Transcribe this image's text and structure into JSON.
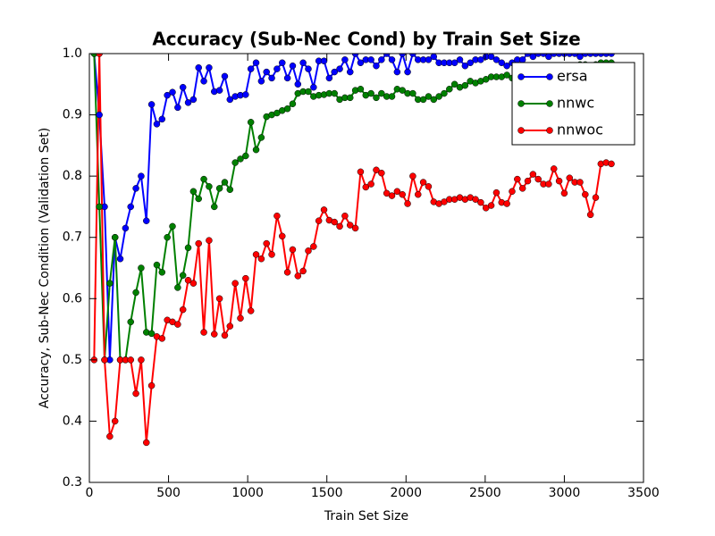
{
  "chart_data": {
    "type": "line",
    "title": "Accuracy (Sub-Nec Cond) by Train Set Size",
    "xlabel": "Train Set Size",
    "ylabel": "Accuracy, Sub-Nec Condition (Validation Set)",
    "xlim": [
      0,
      3500
    ],
    "ylim": [
      0.3,
      1
    ],
    "xticks": [
      0,
      500,
      1000,
      1500,
      2000,
      2500,
      3000,
      3500
    ],
    "yticks": [
      0.3,
      0.4,
      0.5,
      0.6,
      0.7,
      0.8,
      0.9,
      {
        "value": 1,
        "label": "1.0"
      }
    ],
    "legend": "upper right",
    "x": [
      30,
      63,
      96,
      129,
      162,
      195,
      228,
      261,
      294,
      327,
      360,
      393,
      426,
      459,
      492,
      525,
      558,
      591,
      624,
      657,
      690,
      723,
      756,
      789,
      822,
      855,
      888,
      921,
      954,
      987,
      1020,
      1053,
      1086,
      1119,
      1152,
      1185,
      1218,
      1251,
      1284,
      1317,
      1350,
      1383,
      1416,
      1449,
      1482,
      1515,
      1548,
      1581,
      1614,
      1647,
      1680,
      1713,
      1746,
      1779,
      1812,
      1845,
      1878,
      1911,
      1944,
      1977,
      2010,
      2043,
      2076,
      2109,
      2142,
      2175,
      2208,
      2241,
      2274,
      2307,
      2340,
      2373,
      2406,
      2439,
      2472,
      2505,
      2538,
      2571,
      2604,
      2637,
      2670,
      2703,
      2736,
      2769,
      2802,
      2835,
      2868,
      2901,
      2934,
      2967,
      3000,
      3033,
      3066,
      3099,
      3132,
      3165,
      3198,
      3231,
      3264,
      3297
    ],
    "series": [
      {
        "name": "ersa",
        "color": "#0000ff",
        "values": [
          1.0,
          0.9,
          0.75,
          0.5,
          0.7,
          0.665,
          0.715,
          0.75,
          0.78,
          0.8,
          0.727,
          0.917,
          0.885,
          0.893,
          0.932,
          0.937,
          0.912,
          0.945,
          0.92,
          0.925,
          0.977,
          0.955,
          0.977,
          0.938,
          0.94,
          0.963,
          0.925,
          0.93,
          0.932,
          0.933,
          0.975,
          0.985,
          0.955,
          0.97,
          0.96,
          0.975,
          0.985,
          0.96,
          0.98,
          0.95,
          0.985,
          0.975,
          0.945,
          0.988,
          0.988,
          0.96,
          0.97,
          0.975,
          0.99,
          0.97,
          1.0,
          0.985,
          0.99,
          0.99,
          0.98,
          0.99,
          1.0,
          0.99,
          0.97,
          1.0,
          0.97,
          1.0,
          0.99,
          0.99,
          0.99,
          0.995,
          0.985,
          0.985,
          0.985,
          0.985,
          0.99,
          0.98,
          0.985,
          0.99,
          0.99,
          0.995,
          0.995,
          0.99,
          0.985,
          0.98,
          0.985,
          0.99,
          0.99,
          1.0,
          0.995,
          1.0,
          1.0,
          0.995,
          1.0,
          1.0,
          1.0,
          1.0,
          1.0,
          0.995,
          1.0,
          1.0,
          1.0,
          1.0,
          1.0,
          1.0
        ]
      },
      {
        "name": "nnwc",
        "color": "#008000",
        "values": [
          1.0,
          0.75,
          0.5,
          0.625,
          0.7,
          0.5,
          0.5,
          0.562,
          0.61,
          0.65,
          0.545,
          0.543,
          0.655,
          0.643,
          0.7,
          0.718,
          0.618,
          0.638,
          0.683,
          0.775,
          0.763,
          0.795,
          0.783,
          0.75,
          0.78,
          0.79,
          0.778,
          0.822,
          0.828,
          0.833,
          0.888,
          0.843,
          0.863,
          0.897,
          0.9,
          0.903,
          0.907,
          0.91,
          0.918,
          0.935,
          0.938,
          0.938,
          0.93,
          0.932,
          0.933,
          0.935,
          0.935,
          0.925,
          0.928,
          0.928,
          0.94,
          0.942,
          0.932,
          0.935,
          0.928,
          0.935,
          0.93,
          0.93,
          0.942,
          0.94,
          0.935,
          0.935,
          0.925,
          0.925,
          0.93,
          0.925,
          0.93,
          0.935,
          0.942,
          0.95,
          0.945,
          0.948,
          0.955,
          0.952,
          0.955,
          0.958,
          0.962,
          0.962,
          0.962,
          0.965,
          0.96,
          0.958,
          0.962,
          0.968,
          0.97,
          0.97,
          0.972,
          0.975,
          0.978,
          0.978,
          0.98,
          0.978,
          0.98,
          0.982,
          0.982,
          0.98,
          0.982,
          0.985,
          0.985,
          0.985
        ]
      },
      {
        "name": "nnwoc",
        "color": "#ff0000",
        "values": [
          0.5,
          1.0,
          0.5,
          0.375,
          0.4,
          0.5,
          0.5,
          0.5,
          0.445,
          0.5,
          0.365,
          0.458,
          0.538,
          0.535,
          0.565,
          0.562,
          0.558,
          0.582,
          0.63,
          0.625,
          0.69,
          0.545,
          0.695,
          0.542,
          0.6,
          0.54,
          0.555,
          0.625,
          0.568,
          0.633,
          0.58,
          0.672,
          0.665,
          0.69,
          0.672,
          0.735,
          0.702,
          0.643,
          0.68,
          0.637,
          0.645,
          0.678,
          0.685,
          0.727,
          0.745,
          0.728,
          0.725,
          0.718,
          0.735,
          0.72,
          0.715,
          0.807,
          0.782,
          0.787,
          0.81,
          0.805,
          0.772,
          0.768,
          0.775,
          0.77,
          0.755,
          0.8,
          0.77,
          0.79,
          0.783,
          0.758,
          0.755,
          0.758,
          0.762,
          0.762,
          0.765,
          0.762,
          0.765,
          0.762,
          0.757,
          0.748,
          0.752,
          0.773,
          0.757,
          0.755,
          0.775,
          0.795,
          0.78,
          0.792,
          0.803,
          0.795,
          0.787,
          0.787,
          0.812,
          0.792,
          0.772,
          0.797,
          0.79,
          0.79,
          0.77,
          0.737,
          0.765,
          0.82,
          0.822,
          0.82
        ]
      }
    ]
  }
}
